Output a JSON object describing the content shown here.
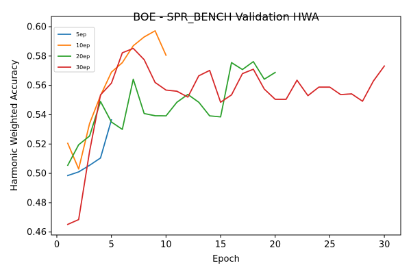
{
  "chart_data": {
    "type": "line",
    "title": "BOE - SPR_BENCH Validation HWA",
    "xlabel": "Epoch",
    "ylabel": "Harmonic Weighted Accuracy",
    "xlim": [
      -0.5,
      31.5
    ],
    "ylim": [
      0.458,
      0.607
    ],
    "xticks": [
      0,
      5,
      10,
      15,
      20,
      25,
      30
    ],
    "yticks": [
      0.46,
      0.48,
      0.5,
      0.52,
      0.54,
      0.56,
      0.58,
      0.6
    ],
    "ytick_labels": [
      "0.46",
      "0.48",
      "0.50",
      "0.52",
      "0.54",
      "0.56",
      "0.58",
      "0.60"
    ],
    "grid": false,
    "legend_position": "top-left",
    "series": [
      {
        "name": "5ep",
        "color": "#1f77b4",
        "x": [
          1,
          2,
          3,
          4,
          5
        ],
        "values": [
          0.4985,
          0.501,
          0.5055,
          0.5105,
          0.5365
        ]
      },
      {
        "name": "10ep",
        "color": "#ff7f0e",
        "x": [
          1,
          2,
          3,
          4,
          5,
          6,
          7,
          8,
          9,
          10
        ],
        "values": [
          0.5205,
          0.503,
          0.534,
          0.553,
          0.569,
          0.5755,
          0.587,
          0.593,
          0.5972,
          0.5805
        ]
      },
      {
        "name": "20ep",
        "color": "#2ca02c",
        "x": [
          1,
          2,
          3,
          4,
          5,
          6,
          7,
          8,
          9,
          10,
          11,
          12,
          13,
          14,
          15,
          16,
          17,
          18,
          19,
          20
        ],
        "values": [
          0.5055,
          0.5195,
          0.5255,
          0.549,
          0.535,
          0.53,
          0.5642,
          0.5408,
          0.5393,
          0.5392,
          0.5485,
          0.5538,
          0.5485,
          0.5392,
          0.5385,
          0.5755,
          0.5708,
          0.5762,
          0.5642,
          0.5688
        ]
      },
      {
        "name": "30ep",
        "color": "#d62728",
        "x": [
          1,
          2,
          3,
          4,
          5,
          6,
          7,
          8,
          9,
          10,
          11,
          12,
          13,
          14,
          15,
          16,
          17,
          18,
          19,
          20,
          21,
          22,
          23,
          24,
          25,
          26,
          27,
          28,
          29,
          30
        ],
        "values": [
          0.4652,
          0.4685,
          0.515,
          0.5535,
          0.5615,
          0.5822,
          0.5852,
          0.5775,
          0.562,
          0.5568,
          0.556,
          0.552,
          0.5665,
          0.5702,
          0.5485,
          0.5535,
          0.568,
          0.571,
          0.5575,
          0.5505,
          0.5505,
          0.5635,
          0.553,
          0.5588,
          0.5588,
          0.5537,
          0.5542,
          0.5492,
          0.563,
          0.5732
        ]
      }
    ]
  }
}
